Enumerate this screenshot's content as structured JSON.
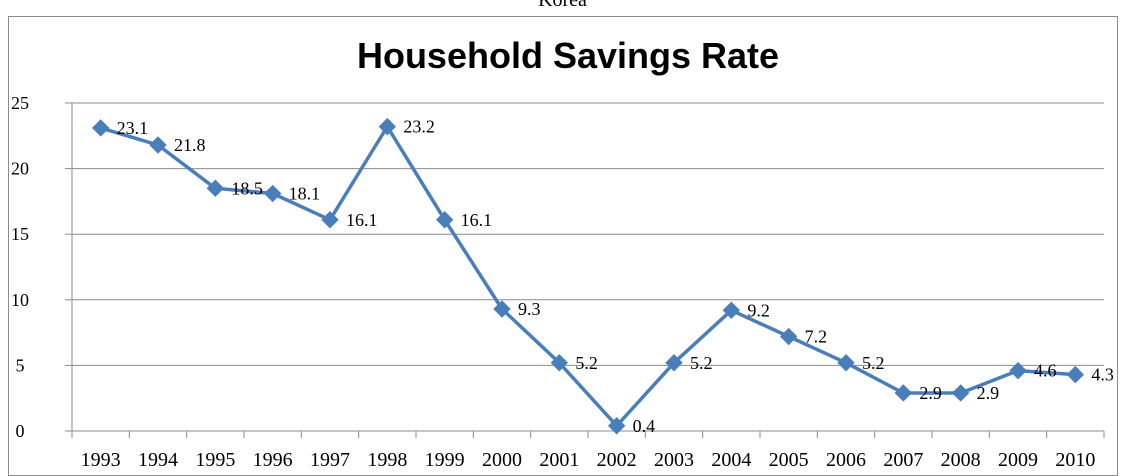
{
  "page": {
    "top_caption": "Korea"
  },
  "chart_data": {
    "type": "line",
    "title": "Household Savings Rate",
    "xlabel": "",
    "ylabel": "",
    "ylim": [
      0,
      25
    ],
    "yticks": [
      "0",
      "5",
      "10",
      "15",
      "20",
      "25"
    ],
    "grid": true,
    "legend": "none",
    "categories": [
      "1993",
      "1994",
      "1995",
      "1996",
      "1997",
      "1998",
      "1999",
      "2000",
      "2001",
      "2002",
      "2003",
      "2004",
      "2005",
      "2006",
      "2007",
      "2008",
      "2009",
      "2010"
    ],
    "series": [
      {
        "values": [
          23.1,
          21.8,
          18.5,
          18.1,
          16.1,
          23.2,
          16.1,
          9.3,
          5.2,
          0.4,
          5.2,
          9.2,
          7.2,
          5.2,
          2.9,
          2.9,
          4.6,
          4.3
        ],
        "labels": [
          "23.1",
          "21.8",
          "18.5",
          "18.1",
          "16.1",
          "23.2",
          "16.1",
          "9.3",
          "5.2",
          "0.4",
          "5.2",
          "9.2",
          "7.2",
          "5.2",
          "2.9",
          "2.9",
          "4.6",
          "4.3"
        ],
        "color": "#4a7ebb"
      }
    ],
    "colors": {
      "line": "#4a7ebb",
      "grid": "#8c8c8c",
      "axis": "#8c8c8c"
    }
  }
}
